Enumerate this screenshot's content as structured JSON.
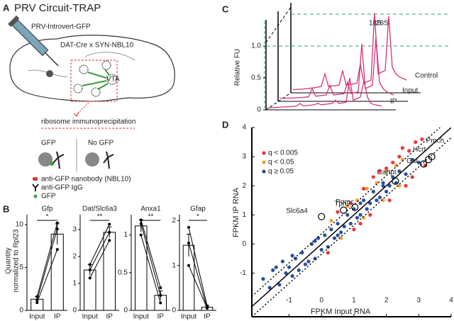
{
  "panel_a": {
    "letter": "A",
    "title": "PRV Circuit-TRAP",
    "virus": "PRV-Introvert-GFP",
    "mouse": "DAT-Cre x SYN-NBL10",
    "region": "VTA",
    "step": "ribosome immunoprecipitation",
    "gfp": "GFP",
    "no_gfp": "No GFP",
    "legend": [
      "anti-GFP nanobody (NBL10)",
      "anti-GFP IgG",
      "GFP"
    ]
  },
  "panel_b": {
    "letter": "B",
    "ylabel": [
      "Quantity",
      "normalized to Rpl23"
    ]
  },
  "panel_c": {
    "letter": "C"
  },
  "panel_d": {
    "letter": "D"
  },
  "chart_data": [
    {
      "type": "bar",
      "title": "Gfp",
      "categories": [
        "Input",
        "IP"
      ],
      "values": [
        1.3,
        8.9
      ],
      "errors": [
        0.3,
        1.2
      ],
      "pairs": [
        [
          0.9,
          7.1
        ],
        [
          1.2,
          9.5
        ],
        [
          1.6,
          10.2
        ]
      ],
      "significance": "*",
      "color": "#ffffff",
      "ylim": [
        0,
        11
      ],
      "yticks": [
        0,
        5,
        10
      ]
    },
    {
      "type": "bar",
      "title": "Dat/Slc6a3",
      "categories": [
        "Input",
        "IP"
      ],
      "values": [
        1.5,
        2.9
      ],
      "errors": [
        0.2,
        0.2
      ],
      "pairs": [
        [
          1.2,
          2.6
        ],
        [
          1.5,
          2.9
        ],
        [
          1.7,
          3.2
        ]
      ],
      "significance": "**",
      "color": "#ffffff",
      "ylim": [
        0,
        3.5
      ],
      "yticks": [
        0,
        1,
        2,
        3
      ]
    },
    {
      "type": "bar",
      "title": "Anxa1",
      "categories": [
        "Input",
        "IP"
      ],
      "values": [
        1.12,
        0.2
      ],
      "errors": [
        0.08,
        0.06
      ],
      "pairs": [
        [
          1.0,
          0.1
        ],
        [
          1.15,
          0.2
        ],
        [
          1.2,
          0.3
        ]
      ],
      "significance": "**",
      "color": "#ffffff",
      "ylim": [
        0,
        1.25
      ],
      "yticks": [
        0,
        0.5,
        1
      ]
    },
    {
      "type": "bar",
      "title": "Gfap",
      "categories": [
        "Input",
        "IP"
      ],
      "values": [
        1.45,
        0.07
      ],
      "errors": [
        0.25,
        0.03
      ],
      "pairs": [
        [
          1.0,
          0.05
        ],
        [
          1.5,
          0.05
        ],
        [
          1.85,
          0.1
        ]
      ],
      "significance": "*",
      "color": "#ffffff",
      "ylim": [
        0,
        2.1
      ],
      "yticks": [
        0,
        1,
        2
      ]
    },
    {
      "type": "line",
      "ylabel": "Relative FU",
      "x": [
        0,
        3,
        6,
        8,
        9,
        10,
        13,
        14,
        15,
        18,
        19,
        20,
        22,
        23,
        24,
        26,
        27,
        28,
        29,
        30,
        32
      ],
      "xlim": [
        0,
        32
      ],
      "series": [
        {
          "name": "Control",
          "color": "#d6337a",
          "values": [
            0.05,
            0.06,
            0.08,
            0.1,
            0.3,
            0.1,
            0.12,
            0.35,
            0.12,
            0.15,
            0.45,
            0.15,
            0.2,
            1.25,
            0.3,
            0.35,
            1.2,
            0.4,
            0.3,
            0.25,
            0.2
          ]
        },
        {
          "name": "Input",
          "color": "#d6337a",
          "values": [
            0.05,
            0.05,
            0.06,
            0.07,
            0.2,
            0.08,
            0.1,
            0.25,
            0.1,
            0.12,
            0.3,
            0.12,
            0.15,
            0.9,
            0.2,
            0.25,
            1.0,
            0.3,
            0.2,
            0.15,
            0.1
          ]
        },
        {
          "name": "IP",
          "color": "#d6337a",
          "values": [
            0.03,
            0.04,
            0.05,
            0.06,
            0.1,
            0.06,
            0.08,
            0.1,
            0.08,
            0.1,
            0.15,
            0.1,
            0.12,
            0.5,
            0.15,
            0.2,
            0.45,
            0.2,
            0.1,
            0.08,
            0.06
          ]
        }
      ],
      "ylim": [
        0,
        1.5
      ],
      "yticks": [
        0,
        0.5,
        {
          "value": 1,
          "label": "1.0"
        }
      ],
      "hlines": [
        1,
        1.5
      ],
      "hline_color": "#2aa58a",
      "annotations": [
        {
          "text": "18S",
          "color": "#c2307e"
        },
        {
          "text": "28S",
          "color": "#2aa58a"
        }
      ]
    },
    {
      "type": "scatter",
      "xlabel": "FPKM Input RNA",
      "ylabel": "FPKM IP RNA",
      "xlim": [
        -2.15,
        4
      ],
      "ylim": [
        -2.5,
        4
      ],
      "xticks": [
        -1,
        0,
        1,
        2,
        3,
        4
      ],
      "yticks": [
        -1,
        0,
        1,
        2,
        3,
        4
      ],
      "legend": "upper left",
      "series": [
        {
          "name": "q < 0.005",
          "color": "#e8383d",
          "x": [
            0.5,
            0.9,
            1.3,
            1.6,
            1.8,
            2.0,
            2.2,
            2.4,
            2.5,
            2.7,
            2.9,
            3.1,
            1.0,
            1.5,
            2.1,
            2.6,
            2.8,
            3.2,
            0.2,
            1.2
          ],
          "y": [
            1.1,
            1.4,
            1.9,
            2.3,
            2.5,
            2.6,
            2.8,
            3.0,
            3.3,
            3.2,
            3.5,
            3.6,
            0.5,
            1.0,
            1.5,
            2.0,
            2.3,
            2.7,
            -0.3,
            0.7
          ]
        },
        {
          "name": "q < 0.05",
          "color": "#f0a030",
          "x": [
            0.3,
            0.8,
            1.1,
            1.4,
            1.7,
            2.0,
            2.3,
            2.5,
            1.3,
            1.9,
            2.4,
            0.6
          ],
          "y": [
            0.8,
            1.3,
            1.5,
            1.9,
            2.1,
            2.5,
            2.7,
            2.9,
            0.9,
            1.5,
            2.0,
            0.2
          ]
        },
        {
          "name": "q ≥ 0.05",
          "color": "#2a4fa0",
          "x": [
            -1.8,
            -1.6,
            -1.5,
            -1.3,
            -1.2,
            -1.1,
            -1.0,
            -0.9,
            -0.8,
            -0.7,
            -0.6,
            -0.5,
            -0.4,
            -0.3,
            -0.2,
            -0.1,
            0,
            0.1,
            0.2,
            0.3,
            0.4,
            0.5,
            0.6,
            0.7,
            0.8,
            0.9,
            1.0,
            1.1,
            1.2,
            1.3,
            1.4,
            1.5,
            1.6,
            1.7,
            1.8,
            1.9,
            2.0,
            2.1,
            2.2,
            2.3,
            2.4,
            2.6,
            2.8,
            3.0,
            -1.4,
            -0.9,
            -0.2,
            0.5,
            1.2,
            1.9
          ],
          "y": [
            -1.2,
            -1.5,
            -0.9,
            -1.4,
            -0.6,
            -1.0,
            -0.8,
            -1.1,
            -0.5,
            -0.9,
            -0.3,
            -0.7,
            -0.6,
            0,
            -0.5,
            0.2,
            -0.2,
            0.3,
            -0.1,
            0.5,
            0.2,
            0.7,
            0.4,
            0.6,
            1.0,
            0.7,
            1.2,
            0.9,
            1.0,
            1.5,
            1.2,
            1.4,
            1.8,
            1.5,
            1.6,
            2.1,
            1.8,
            2.0,
            2.3,
            2.1,
            2.5,
            2.4,
            2.9,
            2.8,
            -0.8,
            -0.4,
            0.1,
            0.3,
            1.4,
            2.0
          ]
        }
      ],
      "fold_lines": [
        {
          "intercept": 0,
          "style": "solid"
        },
        {
          "intercept": 0.35,
          "style": "dotted"
        },
        {
          "intercept": -0.35,
          "style": "dotted"
        }
      ],
      "genes": [
        {
          "name": "Pmch",
          "x": 3.4,
          "y": 3.0
        },
        {
          "name": "Hcrt",
          "x": 3.3,
          "y": 2.9
        },
        {
          "name": "Gal",
          "x": 3.15,
          "y": 2.75
        },
        {
          "name": "Cartpt",
          "x": 2.28,
          "y": 2.16
        },
        {
          "name": "Pomc",
          "x": 1.03,
          "y": 1.26
        },
        {
          "name": "Tph2",
          "x": 0.68,
          "y": 1.16
        },
        {
          "name": "Slc6a4",
          "x": 0.0,
          "y": 0.94
        }
      ]
    }
  ]
}
